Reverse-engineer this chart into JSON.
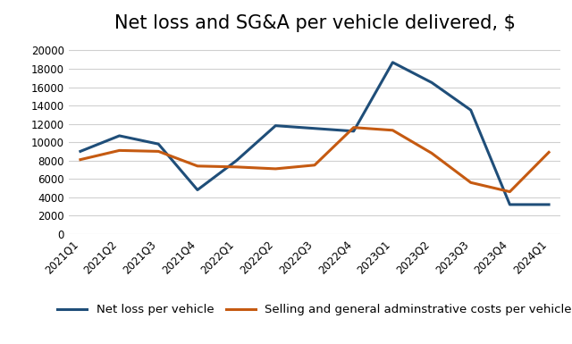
{
  "title": "Net loss and SG&A per vehicle delivered, $",
  "categories": [
    "2021Q1",
    "2021Q2",
    "2021Q3",
    "2021Q4",
    "2022Q1",
    "2022Q2",
    "2022Q3",
    "2022Q4",
    "2023Q1",
    "2023Q2",
    "2023Q3",
    "2023Q4",
    "2024Q1"
  ],
  "net_loss": [
    9000,
    10700,
    9800,
    4800,
    8000,
    11800,
    11500,
    11200,
    18700,
    16500,
    13500,
    3200,
    3200
  ],
  "sga": [
    8100,
    9100,
    9000,
    7400,
    7300,
    7100,
    7500,
    11600,
    11300,
    8800,
    5600,
    4600,
    8900
  ],
  "net_loss_color": "#1F4E79",
  "sga_color": "#C55A11",
  "net_loss_label": "Net loss per vehicle",
  "sga_label": "Selling and general adminstrative costs per vehicle",
  "ylim": [
    0,
    21000
  ],
  "yticks": [
    0,
    2000,
    4000,
    6000,
    8000,
    10000,
    12000,
    14000,
    16000,
    18000,
    20000
  ],
  "background_color": "#ffffff",
  "grid_color": "#d0d0d0",
  "title_fontsize": 15,
  "legend_fontsize": 9.5,
  "tick_fontsize": 8.5,
  "line_width": 2.2
}
